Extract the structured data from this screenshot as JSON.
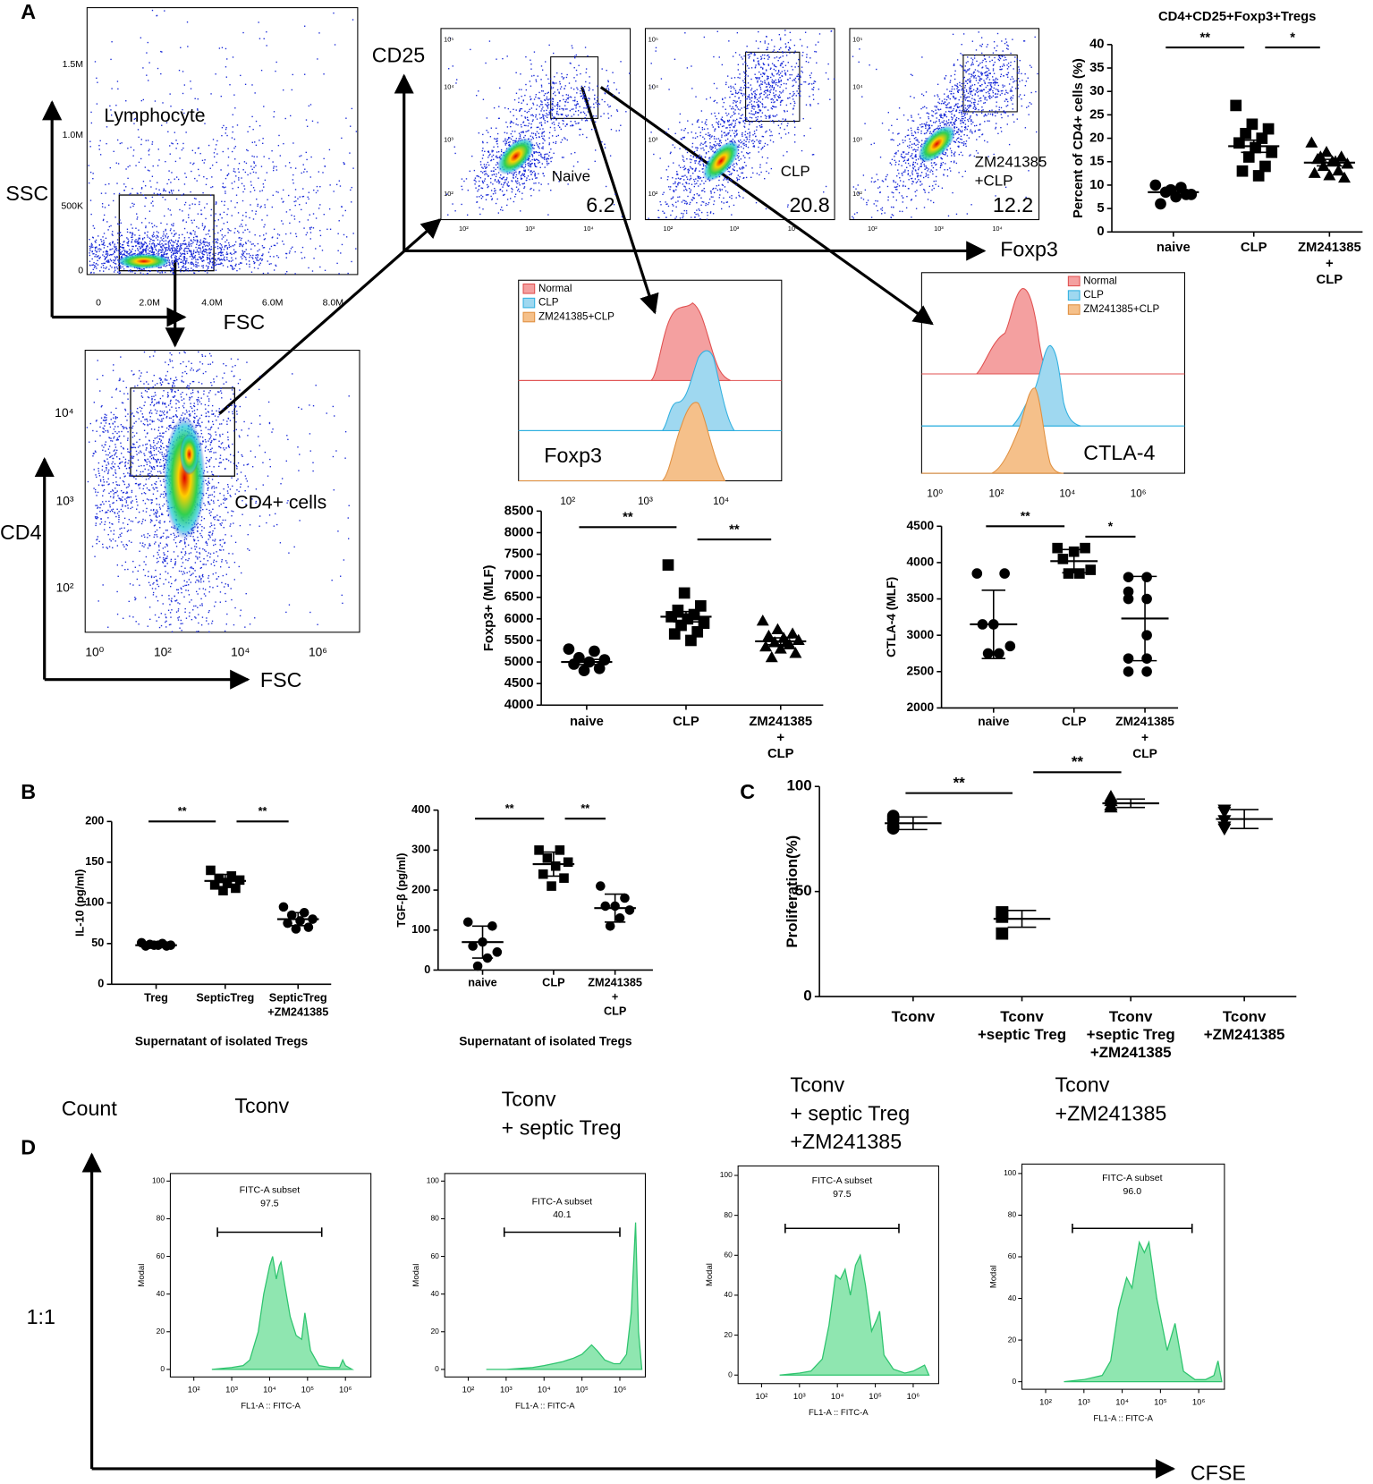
{
  "panel_labels": [
    "A",
    "B",
    "C",
    "D"
  ],
  "flow": {
    "lymphocyte": {
      "gate": "Lymphocyte",
      "ylabel": "SSC",
      "xlabel": "FSC",
      "yticks": [
        "1.5M",
        "1.0M",
        "500K",
        "0"
      ],
      "xticks": [
        "0",
        "2.0M",
        "4.0M",
        "6.0M",
        "8.0M"
      ]
    },
    "cd4": {
      "gate": "CD4+ cells",
      "ylabel": "CD4",
      "xlabel": "FSC",
      "yticks": [
        "10⁴",
        "10³",
        "10²"
      ],
      "xticks": [
        "10⁰",
        "10²",
        "10⁴",
        "10⁶"
      ]
    },
    "cd25": {
      "ylabel": "CD25",
      "xlabel": "Foxp3",
      "yticks": [
        "10⁵",
        "10⁴",
        "10³",
        "10²"
      ],
      "xticks": [
        "10²",
        "10³",
        "10⁴"
      ],
      "plots": [
        {
          "label": [
            "Naive"
          ],
          "percent": 6.2
        },
        {
          "label": [
            "CLP"
          ],
          "percent": 20.8
        },
        {
          "label": [
            "ZM241385",
            "+CLP"
          ],
          "percent": 12.2
        }
      ]
    },
    "foxp3_hist": {
      "legend": [
        "Normal",
        "CLP",
        "ZM241385+CLP"
      ],
      "marker": "Foxp3",
      "xticks": [
        "10²",
        "10³",
        "10⁴"
      ]
    },
    "ctla4_hist": {
      "legend": [
        "Normal",
        "CLP",
        "ZM241385+CLP"
      ],
      "marker": "CTLA-4",
      "xticks": [
        "10⁰",
        "10²",
        "10⁴",
        "10⁶"
      ]
    }
  },
  "panel_d": {
    "count_label": "Count",
    "ratio": "1:1",
    "x_label": "CFSE"
  },
  "chart_data": [
    {
      "type": "dot",
      "title": "CD4+CD25+Foxp3+Tregs",
      "ylabel": "Percent of CD4+ cells (%)",
      "categories": [
        [
          "naive"
        ],
        [
          "CLP"
        ],
        [
          "ZM241385",
          "+",
          "CLP"
        ]
      ],
      "markers": [
        "circle",
        "square",
        "triangle"
      ],
      "values": [
        [
          10,
          9.5,
          8.5,
          8,
          7.5,
          6,
          8,
          9
        ],
        [
          27,
          23,
          22,
          21,
          20,
          19,
          18,
          17,
          16,
          14,
          13,
          12
        ],
        [
          19,
          17,
          16,
          15.5,
          15,
          14.5,
          14,
          13,
          12.5,
          12,
          11.5,
          16,
          15
        ]
      ],
      "means": [
        8.5,
        18.3,
        14.8
      ],
      "errors": [
        0.5,
        1.3,
        0.7
      ],
      "ylim": [
        0,
        40
      ],
      "yticks": [
        0,
        5,
        10,
        15,
        20,
        25,
        30,
        35,
        40
      ],
      "significance": [
        {
          "pair": [
            0,
            1
          ],
          "label": "**"
        },
        {
          "pair": [
            1,
            2
          ],
          "label": "*"
        }
      ]
    },
    {
      "type": "dot",
      "ylabel": "Foxp3+ (MLF)",
      "categories": [
        [
          "naive"
        ],
        [
          "CLP"
        ],
        [
          "ZM241385",
          "+",
          "CLP"
        ]
      ],
      "markers": [
        "circle",
        "square",
        "triangle"
      ],
      "values": [
        [
          5300,
          5250,
          5100,
          5050,
          5000,
          4950,
          4850,
          4800
        ],
        [
          7250,
          6600,
          6300,
          6200,
          6100,
          6050,
          6000,
          5900,
          5850,
          5700,
          5650,
          5500
        ],
        [
          5950,
          5750,
          5650,
          5600,
          5550,
          5500,
          5450,
          5400,
          5350,
          5300,
          5200,
          5100,
          5450
        ]
      ],
      "means": [
        5000,
        6050,
        5480
      ],
      "errors": [
        60,
        120,
        80
      ],
      "ylim": [
        4000,
        8500
      ],
      "yticks": [
        4000,
        4500,
        5000,
        5500,
        6000,
        6500,
        7000,
        7500,
        8000,
        8500
      ],
      "significance": [
        {
          "pair": [
            0,
            1
          ],
          "label": "**"
        },
        {
          "pair": [
            1,
            2
          ],
          "label": "**"
        }
      ]
    },
    {
      "type": "dot",
      "ylabel": "CTLA-4 (MLF)",
      "categories": [
        [
          "naive"
        ],
        [
          "CLP"
        ],
        [
          "ZM241385",
          "+",
          "CLP"
        ]
      ],
      "markers": [
        "circle",
        "square",
        "circle"
      ],
      "values": [
        [
          3850,
          3850,
          3150,
          3150,
          2850,
          2750,
          2750
        ],
        [
          4200,
          4200,
          4150,
          4050,
          3900,
          3850,
          3850
        ],
        [
          3800,
          3800,
          3600,
          3500,
          3500,
          3000,
          2680,
          2680,
          2500,
          2500
        ]
      ],
      "means": [
        3150,
        4020,
        3230
      ],
      "errors": [
        470,
        160,
        580
      ],
      "ylim": [
        2000,
        4500
      ],
      "yticks": [
        2000,
        2500,
        3000,
        3500,
        4000,
        4500
      ],
      "significance": [
        {
          "pair": [
            0,
            1
          ],
          "label": "**"
        },
        {
          "pair": [
            1,
            2
          ],
          "label": "*"
        }
      ]
    },
    {
      "type": "dot",
      "ylabel": "IL-10 (pg/ml)",
      "xlabel": "Supernatant of isolated Tregs",
      "categories": [
        [
          "Treg"
        ],
        [
          "SepticTreg"
        ],
        [
          "SepticTreg",
          "+ZM241385"
        ]
      ],
      "markers": [
        "circle",
        "square",
        "circle"
      ],
      "values": [
        [
          51,
          50,
          49,
          48,
          48,
          47,
          47,
          48
        ],
        [
          140,
          133,
          130,
          128,
          125,
          122,
          118,
          115
        ],
        [
          95,
          88,
          85,
          80,
          78,
          75,
          70,
          68
        ]
      ],
      "means": [
        48,
        127,
        80
      ],
      "errors": [
        2,
        8,
        8
      ],
      "ylim": [
        0,
        200
      ],
      "yticks": [
        0,
        50,
        100,
        150,
        200
      ],
      "significance": [
        {
          "pair": [
            0,
            1
          ],
          "label": "**"
        },
        {
          "pair": [
            1,
            2
          ],
          "label": "**"
        }
      ]
    },
    {
      "type": "dot",
      "ylabel": "TGF-β (pg/ml)",
      "xlabel": "Supernatant of isolated Tregs",
      "categories": [
        [
          "naive"
        ],
        [
          "CLP"
        ],
        [
          "ZM241385",
          "+",
          "CLP"
        ]
      ],
      "markers": [
        "circle",
        "square",
        "circle"
      ],
      "values": [
        [
          120,
          110,
          70,
          60,
          45,
          30,
          10
        ],
        [
          300,
          300,
          280,
          270,
          260,
          240,
          230,
          210
        ],
        [
          210,
          180,
          160,
          160,
          150,
          130,
          110
        ]
      ],
      "means": [
        70,
        265,
        155
      ],
      "errors": [
        40,
        30,
        35
      ],
      "ylim": [
        0,
        400
      ],
      "yticks": [
        0,
        100,
        200,
        300,
        400
      ],
      "significance": [
        {
          "pair": [
            0,
            1
          ],
          "label": "**"
        },
        {
          "pair": [
            1,
            2
          ],
          "label": "**"
        }
      ]
    },
    {
      "type": "dot",
      "ylabel": "Proliferation(%)",
      "categories": [
        [
          "Tconv"
        ],
        [
          "Tconv",
          "+septic Treg"
        ],
        [
          "Tconv",
          "+septic Treg",
          "+ZM241385"
        ],
        [
          "Tconv",
          "+ZM241385"
        ]
      ],
      "markers": [
        "circle",
        "square",
        "triangle",
        "triangle-down"
      ],
      "values": [
        [
          86,
          85,
          84,
          81,
          80
        ],
        [
          40,
          40,
          40,
          38,
          30
        ],
        [
          95,
          94,
          93,
          91,
          90
        ],
        [
          89,
          88,
          84,
          81,
          80
        ]
      ],
      "means": [
        82.5,
        37,
        92,
        84.5
      ],
      "errors": [
        3,
        4,
        2,
        4.5
      ],
      "ylim": [
        0,
        100
      ],
      "yticks": [
        0,
        50,
        100
      ],
      "significance": [
        {
          "pair": [
            0,
            1
          ],
          "label": "**"
        },
        {
          "pair": [
            1,
            2
          ],
          "label": "**"
        }
      ]
    },
    {
      "type": "area",
      "title": [
        "Tconv"
      ],
      "ylabel": "Modal",
      "xlabel": "FL1-A :: FITC-A",
      "gate_label": "FITC-A subset",
      "gate_value": "97.5",
      "gate": [
        420,
        237000
      ],
      "color": "#8fe6b0",
      "x": [
        300,
        1000,
        2000,
        3000,
        5000,
        7000,
        10000,
        12000,
        15000,
        18000,
        20000,
        25000,
        35000,
        50000,
        70000,
        85000,
        120000,
        200000,
        400000,
        700000,
        850000,
        1000000,
        1500000
      ],
      "values": [
        0,
        1,
        2,
        5,
        20,
        40,
        55,
        60,
        48,
        55,
        57,
        45,
        28,
        18,
        16,
        30,
        10,
        2,
        1,
        1,
        5,
        2,
        0
      ],
      "xlim": [
        24,
        4700000
      ],
      "xscale": "log",
      "xticks": [
        {
          "value": 100,
          "label": "10²"
        },
        {
          "value": 1000,
          "label": "10³"
        },
        {
          "value": 10000,
          "label": "10⁴"
        },
        {
          "value": 100000,
          "label": "10⁵"
        },
        {
          "value": 1000000,
          "label": "10⁶"
        }
      ],
      "ylim": [
        0,
        100
      ],
      "yticks": [
        0,
        20,
        40,
        60,
        80,
        100
      ]
    },
    {
      "type": "area",
      "title": [
        "Tconv",
        "+ septic Treg"
      ],
      "ylabel": "Modal",
      "xlabel": "FL1-A :: FITC-A",
      "gate_label": "FITC-A subset",
      "gate_value": "40.1",
      "gate": [
        890,
        1000000
      ],
      "color": "#8fe6b0",
      "x": [
        300,
        1000,
        5000,
        10000,
        30000,
        60000,
        100000,
        180000,
        250000,
        400000,
        700000,
        1000000,
        1500000,
        2000000,
        2600000,
        3100000,
        3800000
      ],
      "values": [
        0,
        0,
        1,
        2,
        4,
        6,
        8,
        13,
        10,
        5,
        3,
        3,
        8,
        30,
        78,
        20,
        0
      ],
      "xlim": [
        24,
        4700000
      ],
      "xscale": "log",
      "xticks": [
        {
          "value": 100,
          "label": "10²"
        },
        {
          "value": 1000,
          "label": "10³"
        },
        {
          "value": 10000,
          "label": "10⁴"
        },
        {
          "value": 100000,
          "label": "10⁵"
        },
        {
          "value": 1000000,
          "label": "10⁶"
        }
      ],
      "ylim": [
        0,
        100
      ],
      "yticks": [
        0,
        20,
        40,
        60,
        80,
        100
      ]
    },
    {
      "type": "area",
      "title": [
        "Tconv",
        "+ septic Treg",
        "+ZM241385"
      ],
      "ylabel": "Modal",
      "xlabel": "FL1-A :: FITC-A",
      "gate_label": "FITC-A subset",
      "gate_value": "97.5",
      "gate": [
        420,
        420000
      ],
      "color": "#8fe6b0",
      "x": [
        300,
        1000,
        2000,
        4000,
        6000,
        9000,
        12000,
        16000,
        22000,
        30000,
        40000,
        55000,
        80000,
        110000,
        130000,
        170000,
        300000,
        600000,
        1000000,
        2000000,
        2600000
      ],
      "values": [
        0,
        1,
        2,
        8,
        25,
        50,
        48,
        53,
        40,
        55,
        60,
        45,
        22,
        28,
        32,
        10,
        3,
        1,
        2,
        5,
        0
      ],
      "xlim": [
        24,
        4700000
      ],
      "xscale": "log",
      "xticks": [
        {
          "value": 100,
          "label": "10²"
        },
        {
          "value": 1000,
          "label": "10³"
        },
        {
          "value": 10000,
          "label": "10⁴"
        },
        {
          "value": 100000,
          "label": "10⁵"
        },
        {
          "value": 1000000,
          "label": "10⁶"
        }
      ],
      "ylim": [
        0,
        100
      ],
      "yticks": [
        0,
        20,
        40,
        60,
        80,
        100
      ]
    },
    {
      "type": "area",
      "title": [
        "Tconv",
        "+ZM241385"
      ],
      "ylabel": "Modal",
      "xlabel": "FL1-A :: FITC-A",
      "gate_label": "FITC-A subset",
      "gate_value": "96.0",
      "gate": [
        500,
        670000
      ],
      "color": "#8fe6b0",
      "x": [
        300,
        1000,
        3000,
        5000,
        8000,
        13000,
        18000,
        28000,
        38000,
        50000,
        80000,
        150000,
        240000,
        400000,
        800000,
        1500000,
        2500000,
        3200000,
        4000000
      ],
      "values": [
        0,
        1,
        3,
        10,
        35,
        50,
        45,
        67,
        62,
        67,
        40,
        15,
        28,
        5,
        1,
        1,
        3,
        10,
        0
      ],
      "xlim": [
        24,
        4700000
      ],
      "xscale": "log",
      "xticks": [
        {
          "value": 100,
          "label": "10²"
        },
        {
          "value": 1000,
          "label": "10³"
        },
        {
          "value": 10000,
          "label": "10⁴"
        },
        {
          "value": 100000,
          "label": "10⁵"
        },
        {
          "value": 1000000,
          "label": "10⁶"
        }
      ],
      "ylim": [
        0,
        100
      ],
      "yticks": [
        0,
        20,
        40,
        60,
        80,
        100
      ]
    }
  ]
}
